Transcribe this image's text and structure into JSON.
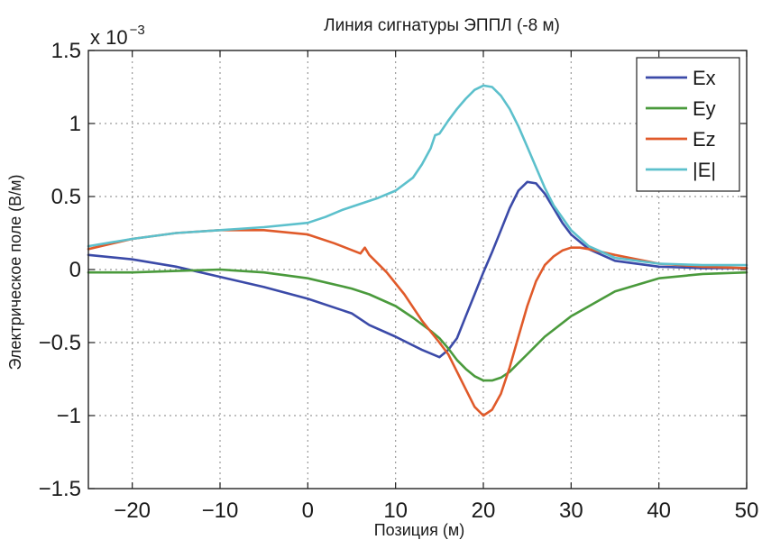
{
  "chart_data": {
    "type": "line",
    "title": "Линия сигнатуры ЭППЛ (-8 м)",
    "xlabel": "Позиция (м)",
    "ylabel": "Электрическое поле (В/м)",
    "y_multiplier": {
      "base": "x 10",
      "exponent": "−3"
    },
    "xlim": [
      -25,
      50
    ],
    "ylim": [
      -1.5,
      1.5
    ],
    "x_ticks": [
      -20,
      -10,
      0,
      10,
      20,
      30,
      40,
      50
    ],
    "x_tick_labels": [
      "−20",
      "−10",
      "0",
      "10",
      "20",
      "30",
      "40",
      "50"
    ],
    "y_ticks": [
      -1.5,
      -1,
      -0.5,
      0,
      0.5,
      1,
      1.5
    ],
    "y_tick_labels": [
      "−1.5",
      "−1",
      "−0.5",
      "0",
      "0.5",
      "1",
      "1.5"
    ],
    "grid": true,
    "grid_style": "dotted",
    "legend_position": "top-right",
    "series": [
      {
        "name": "Ex",
        "color": "#3b4aa8",
        "x": [
          -25,
          -20,
          -15,
          -10,
          -5,
          0,
          5,
          7,
          10,
          13,
          15,
          16,
          17,
          18,
          19,
          20,
          21,
          22,
          23,
          24,
          25,
          26,
          27,
          28,
          29,
          30,
          32,
          35,
          40,
          45,
          50
        ],
        "y": [
          0.1,
          0.07,
          0.02,
          -0.05,
          -0.12,
          -0.2,
          -0.3,
          -0.38,
          -0.46,
          -0.55,
          -0.6,
          -0.55,
          -0.47,
          -0.32,
          -0.17,
          -0.02,
          0.12,
          0.27,
          0.42,
          0.54,
          0.6,
          0.59,
          0.52,
          0.42,
          0.32,
          0.24,
          0.14,
          0.06,
          0.02,
          0.01,
          0.01
        ]
      },
      {
        "name": "Ey",
        "color": "#4a9a3c",
        "x": [
          -25,
          -20,
          -15,
          -10,
          -5,
          0,
          5,
          7,
          10,
          12,
          14,
          15,
          16,
          17,
          18,
          19,
          20,
          21,
          22,
          23,
          24,
          25,
          27,
          30,
          35,
          40,
          45,
          50
        ],
        "y": [
          -0.02,
          -0.02,
          -0.01,
          0.0,
          -0.02,
          -0.06,
          -0.13,
          -0.17,
          -0.25,
          -0.33,
          -0.42,
          -0.47,
          -0.54,
          -0.62,
          -0.68,
          -0.73,
          -0.76,
          -0.76,
          -0.74,
          -0.7,
          -0.64,
          -0.58,
          -0.46,
          -0.32,
          -0.15,
          -0.06,
          -0.03,
          -0.02
        ]
      },
      {
        "name": "Ez",
        "color": "#e05a2a",
        "x": [
          -25,
          -20,
          -15,
          -10,
          -5,
          0,
          3,
          6,
          6.5,
          7,
          9,
          11,
          13,
          15,
          16,
          17,
          18,
          19,
          20,
          21,
          22,
          23,
          24,
          25,
          26,
          27,
          28,
          29,
          30,
          31,
          32,
          35,
          40,
          45,
          50
        ],
        "y": [
          0.14,
          0.21,
          0.25,
          0.27,
          0.27,
          0.24,
          0.18,
          0.11,
          0.15,
          0.1,
          -0.02,
          -0.17,
          -0.35,
          -0.5,
          -0.58,
          -0.7,
          -0.82,
          -0.94,
          -1.0,
          -0.96,
          -0.85,
          -0.67,
          -0.46,
          -0.25,
          -0.08,
          0.03,
          0.09,
          0.13,
          0.15,
          0.15,
          0.14,
          0.1,
          0.04,
          0.02,
          0.01
        ]
      },
      {
        "name": "|E|",
        "color": "#5cc0cc",
        "x": [
          -25,
          -20,
          -15,
          -10,
          -5,
          0,
          2,
          4,
          6,
          8,
          10,
          12,
          13,
          14,
          14.5,
          15,
          16,
          17,
          18,
          19,
          20,
          21,
          22,
          23,
          24,
          25,
          26,
          27,
          28,
          30,
          32,
          35,
          40,
          45,
          50
        ],
        "y": [
          0.16,
          0.21,
          0.25,
          0.27,
          0.29,
          0.32,
          0.36,
          0.41,
          0.45,
          0.49,
          0.54,
          0.63,
          0.72,
          0.83,
          0.92,
          0.93,
          1.02,
          1.1,
          1.17,
          1.23,
          1.26,
          1.25,
          1.19,
          1.1,
          0.98,
          0.84,
          0.7,
          0.56,
          0.44,
          0.27,
          0.16,
          0.08,
          0.04,
          0.03,
          0.03
        ]
      }
    ]
  }
}
